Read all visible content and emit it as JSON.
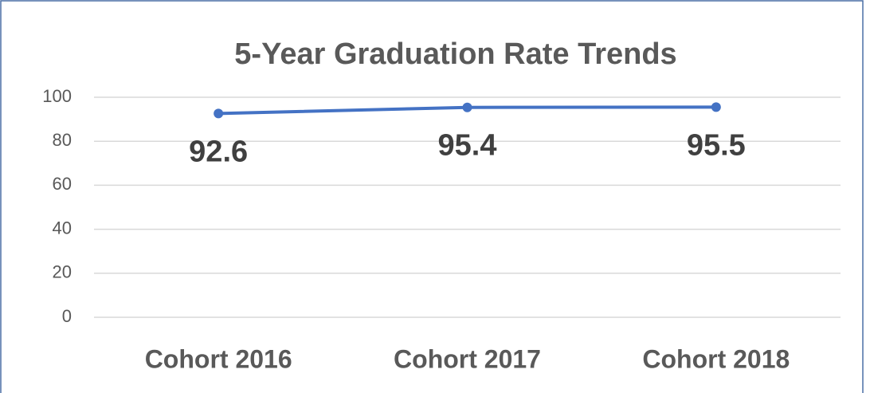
{
  "chart_data": {
    "type": "line",
    "title": "5-Year Graduation Rate Trends",
    "categories": [
      "Cohort 2016",
      "Cohort 2017",
      "Cohort 2018"
    ],
    "series": [
      {
        "name": "5-Year Graduation Rate",
        "color": "#4472c4",
        "values": [
          92.6,
          95.4,
          95.5
        ]
      }
    ],
    "ylim": [
      0,
      100
    ],
    "yticks": [
      0,
      20,
      40,
      60,
      80,
      100
    ],
    "grid": true
  }
}
